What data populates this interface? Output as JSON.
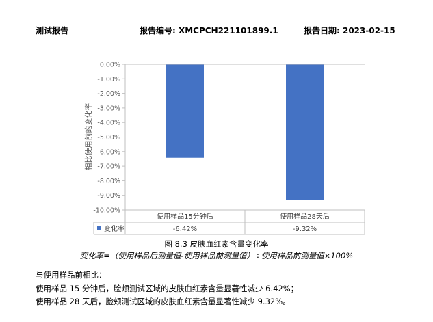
{
  "header": {
    "left": "测试报告",
    "report_no": "报告编号: XMCPCH221101899.1",
    "report_date": "报告日期: 2023-02-15"
  },
  "chart_data": {
    "type": "bar",
    "categories": [
      "使用样品15分钟后",
      "使用样品28天后"
    ],
    "series": [
      {
        "name": "变化率",
        "values": [
          -6.42,
          -9.32
        ],
        "labels": [
          "-6.42%",
          "-9.32%"
        ],
        "color": "#4472C4"
      }
    ],
    "ylabel": "相比使用前的变化率",
    "ylim": [
      -10.0,
      0.0
    ],
    "yticks": [
      0,
      -1,
      -2,
      -3,
      -4,
      -5,
      -6,
      -7,
      -8,
      -9,
      -10
    ],
    "ytick_labels": [
      "0.00%",
      "-1.00%",
      "-2.00%",
      "-3.00%",
      "-4.00%",
      "-5.00%",
      "-6.00%",
      "-7.00%",
      "-8.00%",
      "-9.00%",
      "-10.00%"
    ],
    "grid": false,
    "data_table": true
  },
  "figure": {
    "caption": "图 8.3 皮肤血红素含量变化率",
    "formula": "变化率=（使用样品后测量值-使用样品前测量值）÷使用样品前测量值×100%"
  },
  "text": {
    "intro": "与使用样品前相比：",
    "line1": "使用样品 15 分钟后，脸颊测试区域的皮肤血红素含量显著性减少 6.42%；",
    "line2": "使用样品 28 天后，脸颊测试区域的皮肤血红素含量显著性减少 9.32%。"
  }
}
